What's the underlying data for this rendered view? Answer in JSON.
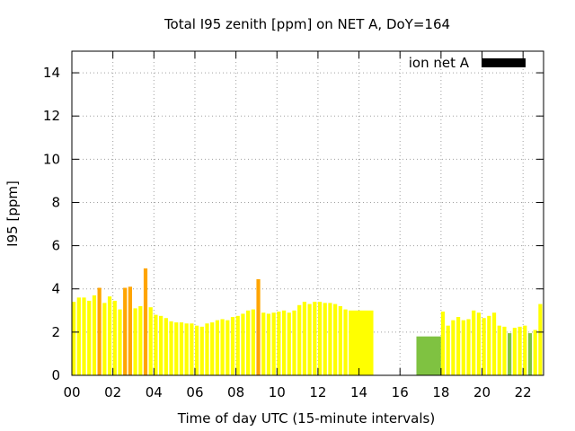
{
  "chart_data": {
    "type": "bar",
    "title": "Total I95 zenith [ppm] on NET A, DoY=164",
    "xlabel": "Time of day UTC (15-minute intervals)",
    "ylabel": "I95 [ppm]",
    "xlim": [
      0,
      23
    ],
    "ylim": [
      0,
      15
    ],
    "x_ticks": [
      {
        "value": 0,
        "label": "00"
      },
      {
        "value": 2,
        "label": "02"
      },
      {
        "value": 4,
        "label": "04"
      },
      {
        "value": 6,
        "label": "06"
      },
      {
        "value": 8,
        "label": "08"
      },
      {
        "value": 10,
        "label": "10"
      },
      {
        "value": 12,
        "label": "12"
      },
      {
        "value": 14,
        "label": "14"
      },
      {
        "value": 16,
        "label": "16"
      },
      {
        "value": 18,
        "label": "18"
      },
      {
        "value": 20,
        "label": "20"
      },
      {
        "value": 22,
        "label": "22"
      }
    ],
    "y_ticks": [
      {
        "value": 0,
        "label": "0"
      },
      {
        "value": 2,
        "label": "2"
      },
      {
        "value": 4,
        "label": "4"
      },
      {
        "value": 6,
        "label": "6"
      },
      {
        "value": 8,
        "label": "8"
      },
      {
        "value": 10,
        "label": "10"
      },
      {
        "value": 12,
        "label": "12"
      },
      {
        "value": 14,
        "label": "14"
      }
    ],
    "grid": true,
    "legend": {
      "label": "ion net A",
      "color": "#000000",
      "position": "top-right"
    },
    "colors": {
      "low": "#7fc241",
      "medium": "#ffff00",
      "high": "#ffa500"
    },
    "bars": [
      {
        "x": 0.0,
        "w": 0.25,
        "y": 3.4,
        "c": "medium"
      },
      {
        "x": 0.25,
        "w": 0.25,
        "y": 3.6,
        "c": "medium"
      },
      {
        "x": 0.5,
        "w": 0.25,
        "y": 3.6,
        "c": "medium"
      },
      {
        "x": 0.75,
        "w": 0.25,
        "y": 3.45,
        "c": "medium"
      },
      {
        "x": 1.0,
        "w": 0.25,
        "y": 3.7,
        "c": "medium"
      },
      {
        "x": 1.25,
        "w": 0.25,
        "y": 4.05,
        "c": "high"
      },
      {
        "x": 1.5,
        "w": 0.25,
        "y": 3.35,
        "c": "medium"
      },
      {
        "x": 1.75,
        "w": 0.25,
        "y": 3.65,
        "c": "medium"
      },
      {
        "x": 2.0,
        "w": 0.25,
        "y": 3.45,
        "c": "medium"
      },
      {
        "x": 2.25,
        "w": 0.25,
        "y": 3.05,
        "c": "medium"
      },
      {
        "x": 2.5,
        "w": 0.25,
        "y": 4.05,
        "c": "high"
      },
      {
        "x": 2.75,
        "w": 0.25,
        "y": 4.1,
        "c": "high"
      },
      {
        "x": 3.0,
        "w": 0.25,
        "y": 3.1,
        "c": "medium"
      },
      {
        "x": 3.25,
        "w": 0.25,
        "y": 3.2,
        "c": "medium"
      },
      {
        "x": 3.5,
        "w": 0.25,
        "y": 4.95,
        "c": "high"
      },
      {
        "x": 3.75,
        "w": 0.25,
        "y": 3.15,
        "c": "medium"
      },
      {
        "x": 4.0,
        "w": 0.25,
        "y": 2.8,
        "c": "medium"
      },
      {
        "x": 4.25,
        "w": 0.25,
        "y": 2.75,
        "c": "medium"
      },
      {
        "x": 4.5,
        "w": 0.25,
        "y": 2.65,
        "c": "medium"
      },
      {
        "x": 4.75,
        "w": 0.25,
        "y": 2.5,
        "c": "medium"
      },
      {
        "x": 5.0,
        "w": 0.25,
        "y": 2.45,
        "c": "medium"
      },
      {
        "x": 5.25,
        "w": 0.25,
        "y": 2.45,
        "c": "medium"
      },
      {
        "x": 5.5,
        "w": 0.25,
        "y": 2.4,
        "c": "medium"
      },
      {
        "x": 5.75,
        "w": 0.25,
        "y": 2.4,
        "c": "medium"
      },
      {
        "x": 6.0,
        "w": 0.25,
        "y": 2.3,
        "c": "medium"
      },
      {
        "x": 6.25,
        "w": 0.25,
        "y": 2.25,
        "c": "medium"
      },
      {
        "x": 6.5,
        "w": 0.25,
        "y": 2.4,
        "c": "medium"
      },
      {
        "x": 6.75,
        "w": 0.25,
        "y": 2.45,
        "c": "medium"
      },
      {
        "x": 7.0,
        "w": 0.25,
        "y": 2.55,
        "c": "medium"
      },
      {
        "x": 7.25,
        "w": 0.25,
        "y": 2.6,
        "c": "medium"
      },
      {
        "x": 7.5,
        "w": 0.25,
        "y": 2.55,
        "c": "medium"
      },
      {
        "x": 7.75,
        "w": 0.25,
        "y": 2.7,
        "c": "medium"
      },
      {
        "x": 8.0,
        "w": 0.25,
        "y": 2.75,
        "c": "medium"
      },
      {
        "x": 8.25,
        "w": 0.25,
        "y": 2.85,
        "c": "medium"
      },
      {
        "x": 8.5,
        "w": 0.25,
        "y": 3.0,
        "c": "medium"
      },
      {
        "x": 8.75,
        "w": 0.25,
        "y": 3.05,
        "c": "medium"
      },
      {
        "x": 9.0,
        "w": 0.25,
        "y": 4.45,
        "c": "high"
      },
      {
        "x": 9.25,
        "w": 0.25,
        "y": 2.9,
        "c": "medium"
      },
      {
        "x": 9.5,
        "w": 0.25,
        "y": 2.85,
        "c": "medium"
      },
      {
        "x": 9.75,
        "w": 0.25,
        "y": 2.9,
        "c": "medium"
      },
      {
        "x": 10.0,
        "w": 0.25,
        "y": 2.95,
        "c": "medium"
      },
      {
        "x": 10.25,
        "w": 0.25,
        "y": 3.0,
        "c": "medium"
      },
      {
        "x": 10.5,
        "w": 0.25,
        "y": 2.9,
        "c": "medium"
      },
      {
        "x": 10.75,
        "w": 0.25,
        "y": 3.0,
        "c": "medium"
      },
      {
        "x": 11.0,
        "w": 0.25,
        "y": 3.25,
        "c": "medium"
      },
      {
        "x": 11.25,
        "w": 0.25,
        "y": 3.4,
        "c": "medium"
      },
      {
        "x": 11.5,
        "w": 0.25,
        "y": 3.3,
        "c": "medium"
      },
      {
        "x": 11.75,
        "w": 0.25,
        "y": 3.4,
        "c": "medium"
      },
      {
        "x": 12.0,
        "w": 0.25,
        "y": 3.4,
        "c": "medium"
      },
      {
        "x": 12.25,
        "w": 0.25,
        "y": 3.35,
        "c": "medium"
      },
      {
        "x": 12.5,
        "w": 0.25,
        "y": 3.35,
        "c": "medium"
      },
      {
        "x": 12.75,
        "w": 0.25,
        "y": 3.3,
        "c": "medium"
      },
      {
        "x": 13.0,
        "w": 0.25,
        "y": 3.2,
        "c": "medium"
      },
      {
        "x": 13.25,
        "w": 0.25,
        "y": 3.05,
        "c": "medium"
      },
      {
        "x": 13.5,
        "w": 1.2,
        "y": 3.0,
        "c": "medium"
      },
      {
        "x": 16.8,
        "w": 1.2,
        "y": 1.8,
        "c": "low"
      },
      {
        "x": 18.0,
        "w": 0.25,
        "y": 2.95,
        "c": "medium"
      },
      {
        "x": 18.25,
        "w": 0.25,
        "y": 2.3,
        "c": "medium"
      },
      {
        "x": 18.5,
        "w": 0.25,
        "y": 2.55,
        "c": "medium"
      },
      {
        "x": 18.75,
        "w": 0.25,
        "y": 2.7,
        "c": "medium"
      },
      {
        "x": 19.0,
        "w": 0.25,
        "y": 2.55,
        "c": "medium"
      },
      {
        "x": 19.25,
        "w": 0.25,
        "y": 2.6,
        "c": "medium"
      },
      {
        "x": 19.5,
        "w": 0.25,
        "y": 3.0,
        "c": "medium"
      },
      {
        "x": 19.75,
        "w": 0.25,
        "y": 2.9,
        "c": "medium"
      },
      {
        "x": 20.0,
        "w": 0.25,
        "y": 2.65,
        "c": "medium"
      },
      {
        "x": 20.25,
        "w": 0.25,
        "y": 2.75,
        "c": "medium"
      },
      {
        "x": 20.5,
        "w": 0.25,
        "y": 2.9,
        "c": "medium"
      },
      {
        "x": 20.75,
        "w": 0.25,
        "y": 2.3,
        "c": "medium"
      },
      {
        "x": 21.0,
        "w": 0.25,
        "y": 2.25,
        "c": "medium"
      },
      {
        "x": 21.25,
        "w": 0.25,
        "y": 1.95,
        "c": "low"
      },
      {
        "x": 21.5,
        "w": 0.25,
        "y": 2.2,
        "c": "medium"
      },
      {
        "x": 21.75,
        "w": 0.25,
        "y": 2.25,
        "c": "medium"
      },
      {
        "x": 22.0,
        "w": 0.25,
        "y": 2.3,
        "c": "medium"
      },
      {
        "x": 22.25,
        "w": 0.25,
        "y": 1.95,
        "c": "low"
      },
      {
        "x": 22.5,
        "w": 0.25,
        "y": 2.1,
        "c": "medium"
      },
      {
        "x": 22.75,
        "w": 0.25,
        "y": 3.3,
        "c": "medium"
      }
    ]
  }
}
